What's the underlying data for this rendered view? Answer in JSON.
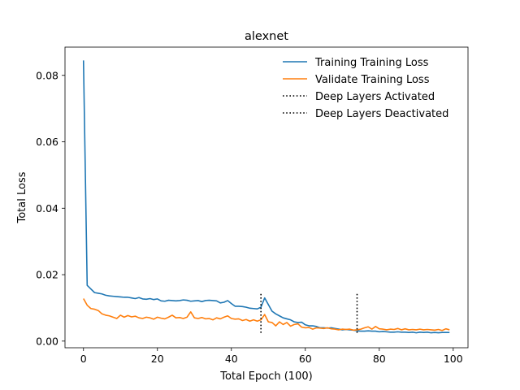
{
  "chart_data": {
    "type": "line",
    "title": "alexnet",
    "xlabel": "Total Epoch (100)",
    "ylabel": "Total Loss",
    "xlim": [
      -5,
      104
    ],
    "ylim": [
      -0.002,
      0.0885
    ],
    "xticks": [
      0,
      20,
      40,
      60,
      80,
      100
    ],
    "yticks": [
      0.0,
      0.02,
      0.04,
      0.06,
      0.08
    ],
    "xtick_labels": [
      "0",
      "20",
      "40",
      "60",
      "80",
      "100"
    ],
    "ytick_labels": [
      "0.00",
      "0.02",
      "0.04",
      "0.06",
      "0.08"
    ],
    "grid": false,
    "legend_position": "top-right",
    "series": [
      {
        "name": "Training Training Loss",
        "color": "#1f77b4",
        "x": [
          0,
          1,
          2,
          3,
          4,
          5,
          6,
          7,
          8,
          9,
          10,
          11,
          12,
          13,
          14,
          15,
          16,
          17,
          18,
          19,
          20,
          21,
          22,
          23,
          24,
          25,
          26,
          27,
          28,
          29,
          30,
          31,
          32,
          33,
          34,
          35,
          36,
          37,
          38,
          39,
          40,
          41,
          42,
          43,
          44,
          45,
          46,
          47,
          48,
          49,
          50,
          51,
          52,
          53,
          54,
          55,
          56,
          57,
          58,
          59,
          60,
          61,
          62,
          63,
          64,
          65,
          66,
          67,
          68,
          69,
          70,
          71,
          72,
          73,
          74,
          75,
          76,
          77,
          78,
          79,
          80,
          81,
          82,
          83,
          84,
          85,
          86,
          87,
          88,
          89,
          90,
          91,
          92,
          93,
          94,
          95,
          96,
          97,
          98,
          99
        ],
        "y": [
          0.0845,
          0.0168,
          0.0157,
          0.0146,
          0.0144,
          0.0142,
          0.0138,
          0.0136,
          0.0135,
          0.0134,
          0.0133,
          0.0132,
          0.0132,
          0.013,
          0.0128,
          0.0131,
          0.0127,
          0.0126,
          0.0128,
          0.0125,
          0.0127,
          0.0121,
          0.012,
          0.0123,
          0.0122,
          0.0121,
          0.0122,
          0.0124,
          0.0123,
          0.012,
          0.0121,
          0.0122,
          0.0119,
          0.0122,
          0.0123,
          0.0122,
          0.0121,
          0.0115,
          0.0117,
          0.0122,
          0.0113,
          0.0105,
          0.0105,
          0.0104,
          0.0102,
          0.0099,
          0.0098,
          0.0097,
          0.0102,
          0.013,
          0.011,
          0.009,
          0.0082,
          0.0076,
          0.007,
          0.0067,
          0.0064,
          0.0058,
          0.0056,
          0.0057,
          0.0049,
          0.0046,
          0.0046,
          0.0044,
          0.004,
          0.004,
          0.0039,
          0.004,
          0.0038,
          0.0036,
          0.0034,
          0.0035,
          0.0034,
          0.0033,
          0.0031,
          0.003,
          0.003,
          0.0031,
          0.003,
          0.003,
          0.0028,
          0.0029,
          0.0028,
          0.0027,
          0.0027,
          0.0028,
          0.0027,
          0.0027,
          0.0026,
          0.0027,
          0.0025,
          0.0027,
          0.0026,
          0.0027,
          0.0025,
          0.0026,
          0.0025,
          0.0026,
          0.0026,
          0.0026
        ]
      },
      {
        "name": "Validate Training Loss",
        "color": "#ff7f0e",
        "x": [
          0,
          1,
          2,
          3,
          4,
          5,
          6,
          7,
          8,
          9,
          10,
          11,
          12,
          13,
          14,
          15,
          16,
          17,
          18,
          19,
          20,
          21,
          22,
          23,
          24,
          25,
          26,
          27,
          28,
          29,
          30,
          31,
          32,
          33,
          34,
          35,
          36,
          37,
          38,
          39,
          40,
          41,
          42,
          43,
          44,
          45,
          46,
          47,
          48,
          49,
          50,
          51,
          52,
          53,
          54,
          55,
          56,
          57,
          58,
          59,
          60,
          61,
          62,
          63,
          64,
          65,
          66,
          67,
          68,
          69,
          70,
          71,
          72,
          73,
          74,
          75,
          76,
          77,
          78,
          79,
          80,
          81,
          82,
          83,
          84,
          85,
          86,
          87,
          88,
          89,
          90,
          91,
          92,
          93,
          94,
          95,
          96,
          97,
          98,
          99
        ],
        "y": [
          0.0128,
          0.0108,
          0.0098,
          0.0096,
          0.0092,
          0.0082,
          0.0078,
          0.0076,
          0.0072,
          0.0068,
          0.0078,
          0.0072,
          0.0077,
          0.0073,
          0.0075,
          0.007,
          0.0068,
          0.0072,
          0.007,
          0.0066,
          0.0072,
          0.0069,
          0.0067,
          0.0072,
          0.0078,
          0.007,
          0.0071,
          0.0068,
          0.0072,
          0.0088,
          0.007,
          0.0068,
          0.0071,
          0.0067,
          0.0068,
          0.0064,
          0.007,
          0.0067,
          0.0072,
          0.0076,
          0.0068,
          0.0066,
          0.0067,
          0.0062,
          0.0065,
          0.006,
          0.0064,
          0.006,
          0.0064,
          0.008,
          0.0058,
          0.0056,
          0.0046,
          0.0058,
          0.005,
          0.0056,
          0.0045,
          0.005,
          0.0052,
          0.0042,
          0.004,
          0.0041,
          0.0036,
          0.004,
          0.0039,
          0.0038,
          0.004,
          0.0037,
          0.0036,
          0.0034,
          0.0036,
          0.0035,
          0.0036,
          0.0033,
          0.0034,
          0.0036,
          0.004,
          0.0043,
          0.0036,
          0.0044,
          0.0037,
          0.0036,
          0.0034,
          0.0036,
          0.0035,
          0.0038,
          0.0034,
          0.0037,
          0.0034,
          0.0035,
          0.0034,
          0.0036,
          0.0034,
          0.0035,
          0.0034,
          0.0033,
          0.0035,
          0.0032,
          0.0037,
          0.0034
        ]
      }
    ],
    "vlines": [
      {
        "name": "Deep Layers Activated",
        "x": 48,
        "ymin": 0.0025,
        "ymax": 0.0145,
        "color": "#000000",
        "style": "dotted"
      },
      {
        "name": "Deep Layers Deactivated",
        "x": 74,
        "ymin": 0.0025,
        "ymax": 0.0145,
        "color": "#000000",
        "style": "dotted"
      }
    ]
  }
}
